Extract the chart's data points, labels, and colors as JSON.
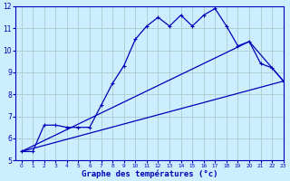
{
  "xlabel": "Graphe des températures (°c)",
  "bg_color": "#cceeff",
  "grid_color": "#aacccc",
  "line_color": "#0000bb",
  "hours": [
    0,
    1,
    2,
    3,
    4,
    5,
    6,
    7,
    8,
    9,
    10,
    11,
    12,
    13,
    14,
    15,
    16,
    17,
    18,
    19,
    20,
    21,
    22,
    23
  ],
  "temp": [
    5.4,
    5.4,
    6.6,
    6.6,
    6.5,
    6.5,
    6.5,
    7.5,
    8.5,
    9.3,
    10.5,
    11.1,
    11.5,
    11.1,
    11.6,
    11.1,
    11.6,
    11.9,
    11.1,
    10.2,
    10.4,
    9.4,
    9.2,
    8.6
  ],
  "trend1_x": [
    0,
    23
  ],
  "trend1_y": [
    5.4,
    8.6
  ],
  "trend2_x": [
    0,
    20
  ],
  "trend2_y": [
    5.4,
    10.4
  ],
  "trend3_x": [
    20,
    23
  ],
  "trend3_y": [
    10.4,
    8.6
  ],
  "ylim": [
    5,
    12
  ],
  "xlim": [
    -0.5,
    23
  ],
  "yticks": [
    5,
    6,
    7,
    8,
    9,
    10,
    11,
    12
  ],
  "xticks": [
    0,
    1,
    2,
    3,
    4,
    5,
    6,
    7,
    8,
    9,
    10,
    11,
    12,
    13,
    14,
    15,
    16,
    17,
    18,
    19,
    20,
    21,
    22,
    23
  ]
}
